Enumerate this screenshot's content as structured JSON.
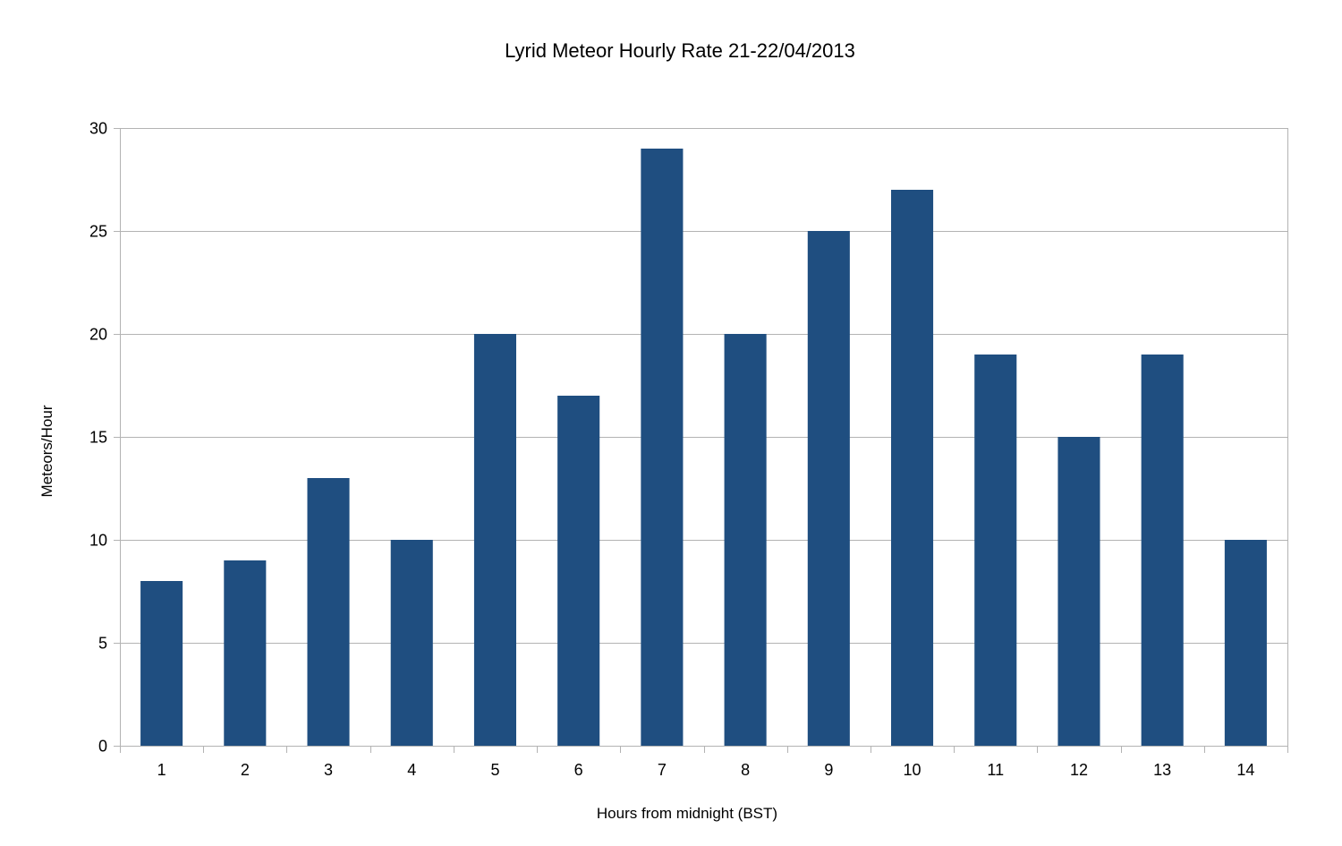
{
  "chart_data": {
    "type": "bar",
    "title": "Lyrid Meteor Hourly Rate 21-22/04/2013",
    "xlabel": "Hours from midnight (BST)",
    "ylabel": "Meteors/Hour",
    "categories": [
      "1",
      "2",
      "3",
      "4",
      "5",
      "6",
      "7",
      "8",
      "9",
      "10",
      "11",
      "12",
      "13",
      "14"
    ],
    "values": [
      8,
      9,
      13,
      10,
      20,
      17,
      29,
      20,
      25,
      27,
      19,
      15,
      19,
      10
    ],
    "ylim": [
      0,
      30
    ],
    "yticks": [
      0,
      5,
      10,
      15,
      20,
      25,
      30
    ],
    "grid": true,
    "legend": "none",
    "bar_color": "#1f4e80",
    "grid_color": "#b3b3b3"
  }
}
